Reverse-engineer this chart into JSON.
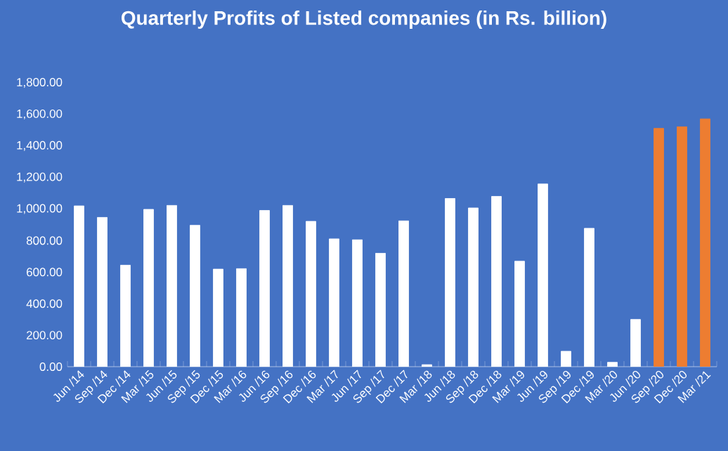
{
  "chart_data": {
    "type": "bar",
    "title": "Quarterly Profits of Listed companies (in Rs. billion)",
    "categories": [
      "Jun /14",
      "Sep /14",
      "Dec /14",
      "Mar /15",
      "Jun /15",
      "Sep /15",
      "Dec /15",
      "Mar /16",
      "Jun /16",
      "Sep /16",
      "Dec /16",
      "Mar /17",
      "Jun /17",
      "Sep /17",
      "Dec /17",
      "Mar /18",
      "Jun /18",
      "Sep /18",
      "Dec /18",
      "Mar /19",
      "Jun /19",
      "Sep /19",
      "Dec /19",
      "Mar /20",
      "Jun /20",
      "Sep /20",
      "Dec /20",
      "Mar /21"
    ],
    "values": [
      1020,
      947,
      644,
      998,
      1023,
      897,
      619,
      622,
      991,
      1023,
      922,
      811,
      805,
      720,
      925,
      13,
      1067,
      1007,
      1080,
      669,
      1159,
      98,
      878,
      28,
      300,
      1512,
      1522,
      1572
    ],
    "colors": [
      "#ffffff",
      "#ffffff",
      "#ffffff",
      "#ffffff",
      "#ffffff",
      "#ffffff",
      "#ffffff",
      "#ffffff",
      "#ffffff",
      "#ffffff",
      "#ffffff",
      "#ffffff",
      "#ffffff",
      "#ffffff",
      "#ffffff",
      "#ffffff",
      "#ffffff",
      "#ffffff",
      "#ffffff",
      "#ffffff",
      "#ffffff",
      "#ffffff",
      "#ffffff",
      "#ffffff",
      "#ffffff",
      "#ed7d31",
      "#ed7d31",
      "#ed7d31"
    ],
    "ylim": [
      0,
      1800
    ],
    "yticks": [
      {
        "value": 0,
        "label": "0.00"
      },
      {
        "value": 200,
        "label": "200.00"
      },
      {
        "value": 400,
        "label": "400.00"
      },
      {
        "value": 600,
        "label": "600.00"
      },
      {
        "value": 800,
        "label": "800.00"
      },
      {
        "value": 1000,
        "label": "1,000.00"
      },
      {
        "value": 1200,
        "label": "1,200.00"
      },
      {
        "value": 1400,
        "label": "1,400.00"
      },
      {
        "value": 1600,
        "label": "1,600.00"
      },
      {
        "value": 1800,
        "label": "1,800.00"
      }
    ],
    "relative": false
  }
}
